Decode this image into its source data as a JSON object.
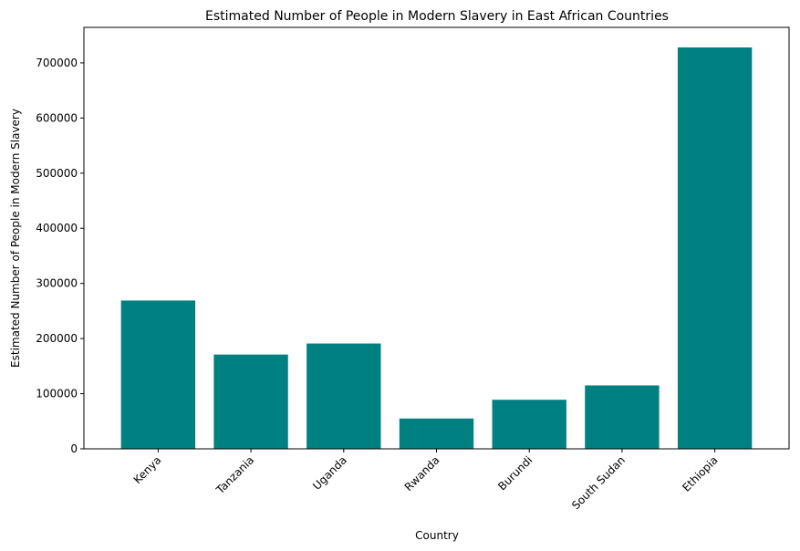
{
  "chart_data": {
    "type": "bar",
    "title": "Estimated Number of People in Modern Slavery in East African Countries",
    "xlabel": "Country",
    "ylabel": "Estimated Number of People in Modern Slavery",
    "categories": [
      "Kenya",
      "Tanzania",
      "Uganda",
      "Rwanda",
      "Burundi",
      "South Sudan",
      "Ethiopia"
    ],
    "values": [
      269000,
      171000,
      191000,
      55000,
      89000,
      115000,
      728000
    ],
    "ylim": [
      0,
      764400
    ],
    "yticks": [
      0,
      100000,
      200000,
      300000,
      400000,
      500000,
      600000,
      700000
    ],
    "ytick_labels": [
      "0",
      "100000",
      "200000",
      "300000",
      "400000",
      "500000",
      "600000",
      "700000"
    ],
    "bar_color": "#008080",
    "grid": false,
    "xtick_rotation": "45 degrees"
  }
}
